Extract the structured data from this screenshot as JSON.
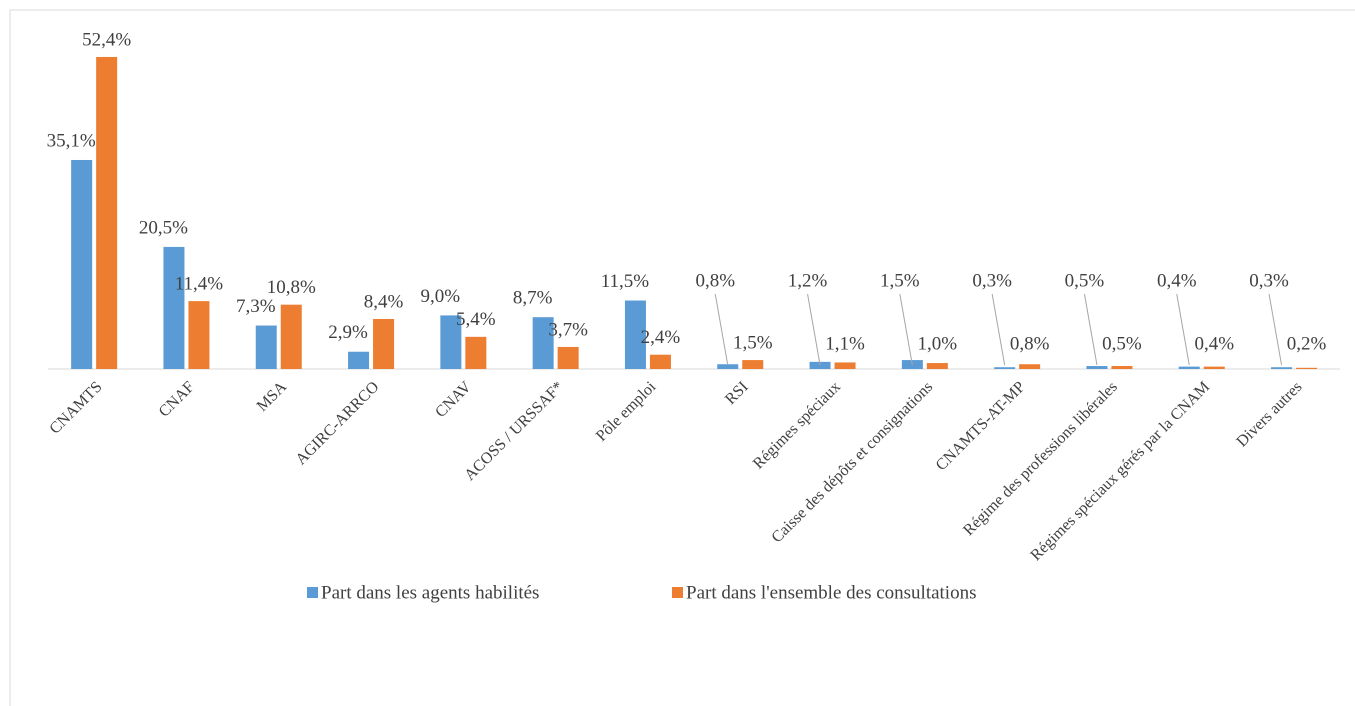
{
  "chart_data": {
    "type": "bar",
    "categories": [
      "CNAMTS",
      "CNAF",
      "MSA",
      "AGIRC-ARRCO",
      "CNAV",
      "ACOSS / URSSAF*",
      "Pôle emploi",
      "RSI",
      "Régimes spéciaux",
      "Caisse des dépôts et consignations",
      "CNAMTS-AT-MP",
      "Régime des professions libérales",
      "Régimes spéciaux gérés par la CNAM",
      "Divers autres"
    ],
    "series": [
      {
        "name": "Part dans les agents habilités",
        "color": "#5b9bd5",
        "values": [
          35.1,
          20.5,
          7.3,
          2.9,
          9.0,
          8.7,
          11.5,
          0.8,
          1.2,
          1.5,
          0.3,
          0.5,
          0.4,
          0.3
        ],
        "value_labels": [
          "35,1%",
          "20,5%",
          "7,3%",
          "2,9%",
          "9,0%",
          "8,7%",
          "11,5%",
          "0,8%",
          "1,2%",
          "1,5%",
          "0,3%",
          "0,5%",
          "0,4%",
          "0,3%"
        ]
      },
      {
        "name": "Part dans l'ensemble des consultations",
        "color": "#ed7d31",
        "values": [
          52.4,
          11.4,
          10.8,
          8.4,
          5.4,
          3.7,
          2.4,
          1.5,
          1.1,
          1.0,
          0.8,
          0.5,
          0.4,
          0.2
        ],
        "value_labels": [
          "52,4%",
          "11,4%",
          "10,8%",
          "8,4%",
          "5,4%",
          "3,7%",
          "2,4%",
          "1,5%",
          "1,1%",
          "1,0%",
          "0,8%",
          "0,5%",
          "0,4%",
          "0,2%"
        ]
      }
    ],
    "legend": "bottom"
  }
}
